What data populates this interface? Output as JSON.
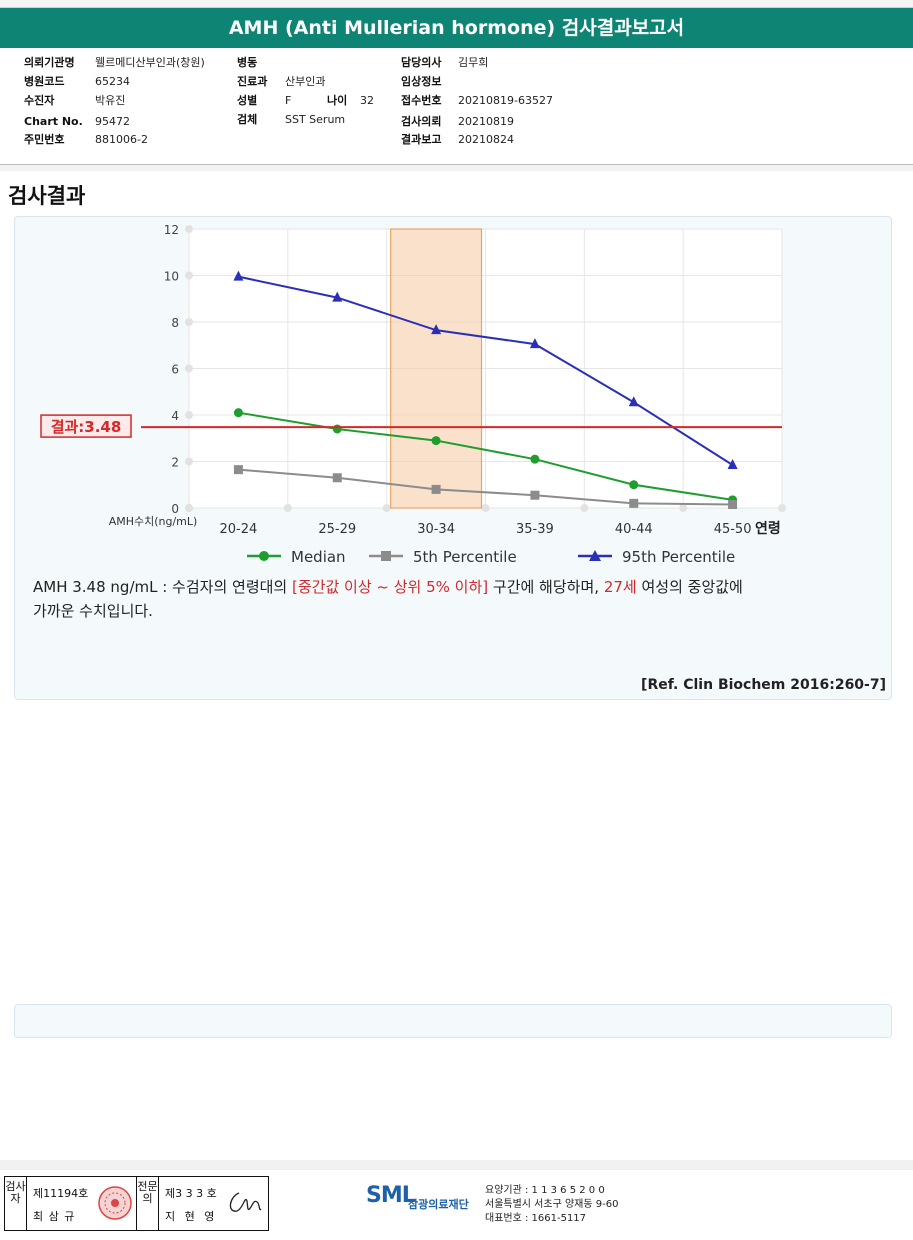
{
  "title": "AMH (Anti Mullerian hormone) 검사결과보고서",
  "info": {
    "col1": [
      {
        "label": "의뢰기관명",
        "value": "웰르메디산부인과(창원)"
      },
      {
        "label": "병원코드",
        "value": "65234"
      },
      {
        "label": "수진자",
        "value": "박유진"
      },
      {
        "label": "Chart No.",
        "value": "95472"
      },
      {
        "label": "주민번호",
        "value": "881006-2"
      }
    ],
    "col2": [
      {
        "label": "병동",
        "value": ""
      },
      {
        "label": "진료과",
        "value": "산부인과"
      },
      {
        "label": "성별",
        "value": "F"
      },
      {
        "label": "검체",
        "value": "SST Serum"
      }
    ],
    "age": {
      "label": "나이",
      "value": "32"
    },
    "col3": [
      {
        "label": "담당의사",
        "value": "김무희"
      },
      {
        "label": "임상정보",
        "value": ""
      },
      {
        "label": "접수번호",
        "value": "20210819-63527"
      },
      {
        "label": "검사의뢰",
        "value": "20210819"
      },
      {
        "label": "결과보고",
        "value": "20210824"
      }
    ]
  },
  "section_title": "검사결과",
  "chart_data": {
    "type": "line",
    "categories": [
      "20-24",
      "25-29",
      "30-34",
      "35-39",
      "40-44",
      "45-50"
    ],
    "x_axis_unit": "연령",
    "ylabel": "AMH수치(ng/mL)",
    "ylim": [
      0,
      12
    ],
    "yticks": [
      "0",
      "2",
      "4",
      "6",
      "8",
      "10",
      "12"
    ],
    "grid": true,
    "legend_position": "bottom",
    "series": [
      {
        "name": "Median",
        "color": "#1f9e2e",
        "marker": "circle",
        "values": [
          4.1,
          3.4,
          2.9,
          2.1,
          1.0,
          0.35
        ]
      },
      {
        "name": "5th Percentile",
        "color": "#8c8c8c",
        "marker": "square",
        "values": [
          1.65,
          1.3,
          0.8,
          0.55,
          0.2,
          0.15
        ]
      },
      {
        "name": "95th Percentile",
        "color": "#2b2fb8",
        "marker": "triangle",
        "values": [
          9.95,
          9.05,
          7.65,
          7.05,
          4.55,
          1.85
        ]
      }
    ],
    "result_line": {
      "value": 3.48,
      "label": "결과:3.48",
      "color": "#d62828"
    },
    "highlight_category": "30-34",
    "highlight_color": "#f5c9a3"
  },
  "description": {
    "prefix": "AMH  3.48 ng/mL : 수검자의 연령대의 ",
    "range": "[중간값 이상 ~ 상위 5% 이하]",
    "middle": "  구간에 해당하며, ",
    "age": "27세",
    "suffix": " 여성의 중앙값에",
    "line2": "가까운 수치입니다."
  },
  "reference": "[Ref. Clin Biochem 2016:260-7]",
  "footer": {
    "inspector_vertical": "검사자",
    "inspector_no": "제11194호",
    "inspector_name": "최 삼 규",
    "confirm_vertical": "전문의",
    "doctor_no": "제3 3 3 호",
    "doctor_name": "지 현 영",
    "logo": "SML",
    "org_name": "삼광의료재단",
    "org_code": "요양기관 : 1 1 3 6 5 2 0 0",
    "org_address": "서울특별시 서초구 양재동 9-60",
    "org_phone": "대표번호 : 1661-5117"
  }
}
